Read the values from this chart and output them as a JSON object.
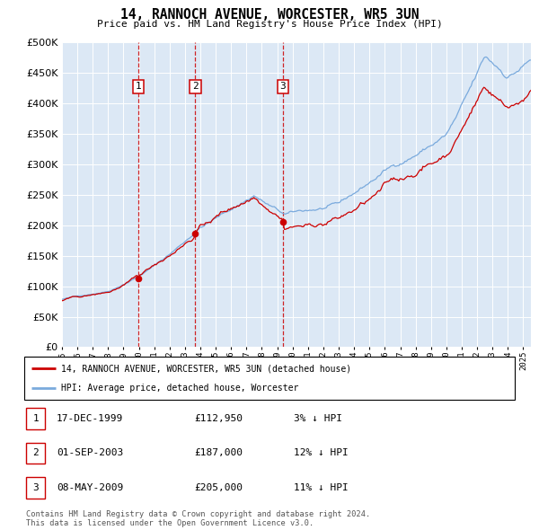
{
  "title": "14, RANNOCH AVENUE, WORCESTER, WR5 3UN",
  "subtitle": "Price paid vs. HM Land Registry's House Price Index (HPI)",
  "ylim": [
    0,
    500000
  ],
  "ytick_vals": [
    0,
    50000,
    100000,
    150000,
    200000,
    250000,
    300000,
    350000,
    400000,
    450000,
    500000
  ],
  "hpi_color": "#7aaadd",
  "price_color": "#cc0000",
  "bg_color": "#dce8f5",
  "sale_points": [
    {
      "date_num": 1999.96,
      "price": 112950,
      "label": "1"
    },
    {
      "date_num": 2003.67,
      "price": 187000,
      "label": "2"
    },
    {
      "date_num": 2009.36,
      "price": 205000,
      "label": "3"
    }
  ],
  "legend_entries": [
    "14, RANNOCH AVENUE, WORCESTER, WR5 3UN (detached house)",
    "HPI: Average price, detached house, Worcester"
  ],
  "table_rows": [
    [
      "1",
      "17-DEC-1999",
      "£112,950",
      "3% ↓ HPI"
    ],
    [
      "2",
      "01-SEP-2003",
      "£187,000",
      "12% ↓ HPI"
    ],
    [
      "3",
      "08-MAY-2009",
      "£205,000",
      "11% ↓ HPI"
    ]
  ],
  "footnote": "Contains HM Land Registry data © Crown copyright and database right 2024.\nThis data is licensed under the Open Government Licence v3.0.",
  "xmin": 1995.0,
  "xmax": 2025.5
}
